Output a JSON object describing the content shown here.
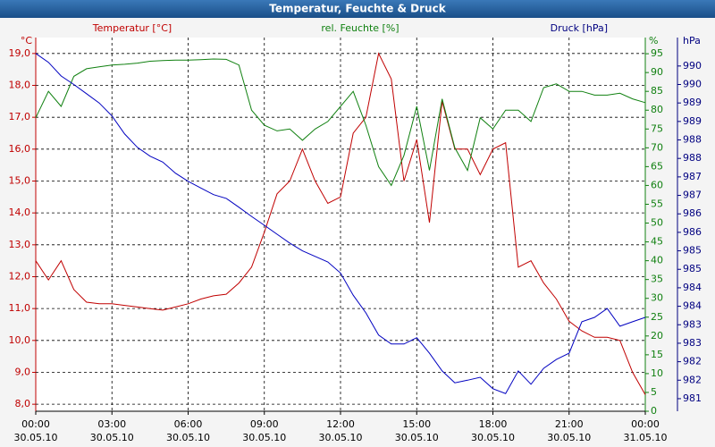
{
  "chart_data": {
    "type": "line",
    "title": "Temperatur, Feuchte & Druck",
    "axis_titles": {
      "y": "Temperatur [°C]",
      "y2": "rel. Feuchte [%]",
      "y3": "Druck [hPa]"
    },
    "axis_units": {
      "y": "°C",
      "y2": "%",
      "y3": "hPa"
    },
    "x": [
      0,
      0.5,
      1,
      1.5,
      2,
      2.5,
      3,
      3.5,
      4,
      4.5,
      5,
      5.5,
      6,
      6.5,
      7,
      7.5,
      8,
      8.5,
      9,
      9.5,
      10,
      10.5,
      11,
      11.5,
      12,
      12.5,
      13,
      13.5,
      14,
      14.5,
      15,
      15.5,
      16,
      16.5,
      17,
      17.5,
      18,
      18.5,
      19,
      19.5,
      20,
      20.5,
      21,
      21.5,
      22,
      22.5,
      23,
      23.5,
      24
    ],
    "xlim": [
      0,
      24
    ],
    "xticks": [
      {
        "value": 0,
        "label": "00:00"
      },
      {
        "value": 3,
        "label": "03:00"
      },
      {
        "value": 6,
        "label": "06:00"
      },
      {
        "value": 9,
        "label": "09:00"
      },
      {
        "value": 12,
        "label": "12:00"
      },
      {
        "value": 15,
        "label": "15:00"
      },
      {
        "value": 18,
        "label": "18:00"
      },
      {
        "value": 21,
        "label": "21:00"
      },
      {
        "value": 24,
        "label": "00:00"
      }
    ],
    "xtick_dates": [
      "30.05.10",
      "30.05.10",
      "30.05.10",
      "30.05.10",
      "30.05.10",
      "30.05.10",
      "30.05.10",
      "30.05.10",
      "31.05.10"
    ],
    "ylim": [
      7.78,
      19.5
    ],
    "yticks": [
      {
        "value": 8,
        "label": "8,0"
      },
      {
        "value": 9,
        "label": "9,0"
      },
      {
        "value": 10,
        "label": "10,0"
      },
      {
        "value": 11,
        "label": "11,0"
      },
      {
        "value": 12,
        "label": "12,0"
      },
      {
        "value": 13,
        "label": "13,0"
      },
      {
        "value": 14,
        "label": "14,0"
      },
      {
        "value": 15,
        "label": "15,0"
      },
      {
        "value": 16,
        "label": "16,0"
      },
      {
        "value": 17,
        "label": "17,0"
      },
      {
        "value": 18,
        "label": "18,0"
      },
      {
        "value": 19,
        "label": "19,0"
      }
    ],
    "y2lim": [
      0,
      99.3
    ],
    "y2ticks": [
      0,
      5,
      10,
      15,
      20,
      25,
      30,
      35,
      40,
      45,
      50,
      55,
      60,
      65,
      70,
      75,
      80,
      85,
      90,
      95
    ],
    "y3lim": [
      981.16,
      991.27
    ],
    "y3ticks": [
      {
        "value": 981.5,
        "label": "981"
      },
      {
        "value": 982,
        "label": "982"
      },
      {
        "value": 982.5,
        "label": "982"
      },
      {
        "value": 983,
        "label": "983"
      },
      {
        "value": 983.5,
        "label": "983"
      },
      {
        "value": 984,
        "label": "984"
      },
      {
        "value": 984.5,
        "label": "984"
      },
      {
        "value": 985,
        "label": "985"
      },
      {
        "value": 985.5,
        "label": "985"
      },
      {
        "value": 986,
        "label": "986"
      },
      {
        "value": 986.5,
        "label": "986"
      },
      {
        "value": 987,
        "label": "987"
      },
      {
        "value": 987.5,
        "label": "987"
      },
      {
        "value": 988,
        "label": "988"
      },
      {
        "value": 988.5,
        "label": "988"
      },
      {
        "value": 989,
        "label": "989"
      },
      {
        "value": 989.5,
        "label": "989"
      },
      {
        "value": 990,
        "label": "990"
      },
      {
        "value": 990.5,
        "label": "990"
      }
    ],
    "grid": true,
    "series": [
      {
        "name": "Temperatur",
        "color": "#c00000",
        "axis": "y",
        "values": [
          12.5,
          11.9,
          12.5,
          11.6,
          11.2,
          11.15,
          11.15,
          11.1,
          11.05,
          11.0,
          10.95,
          11.05,
          11.15,
          11.3,
          11.4,
          11.45,
          11.8,
          12.3,
          13.4,
          14.6,
          15.0,
          16.0,
          15.0,
          14.3,
          14.5,
          16.5,
          17.0,
          19.0,
          18.2,
          15.0,
          16.3,
          13.7,
          17.5,
          16.0,
          16.0,
          15.2,
          16.0,
          16.2,
          12.3,
          12.5,
          11.8,
          11.3,
          10.6,
          10.3,
          10.1,
          10.1,
          10.0,
          9.0,
          8.3
        ]
      },
      {
        "name": "rel. Feuchte",
        "color": "#108010",
        "axis": "y2",
        "values": [
          78,
          85,
          81,
          89,
          91,
          91.5,
          92,
          92.2,
          92.5,
          93,
          93.2,
          93.3,
          93.3,
          93.4,
          93.6,
          93.5,
          92,
          80,
          76,
          74.5,
          75,
          72,
          75,
          77,
          81,
          85,
          76,
          65,
          60,
          68,
          81,
          64,
          83,
          70,
          64,
          78,
          75,
          80,
          80,
          77,
          86,
          87,
          85,
          85,
          84,
          84,
          84.5,
          83,
          82
        ]
      },
      {
        "name": "Druck",
        "color": "#0000c0",
        "axis": "y3",
        "values": [
          990.84,
          990.6,
          990.23,
          990.0,
          989.75,
          989.5,
          989.15,
          988.66,
          988.3,
          988.06,
          987.9,
          987.6,
          987.38,
          987.2,
          987.02,
          986.92,
          986.68,
          986.43,
          986.19,
          985.95,
          985.71,
          985.5,
          985.35,
          985.2,
          984.9,
          984.3,
          983.82,
          983.22,
          982.98,
          982.98,
          983.15,
          982.73,
          982.25,
          981.93,
          982.0,
          982.08,
          981.77,
          981.64,
          982.25,
          981.89,
          982.32,
          982.56,
          982.73,
          983.58,
          983.7,
          983.94,
          983.46,
          983.58,
          983.7
        ]
      }
    ]
  }
}
